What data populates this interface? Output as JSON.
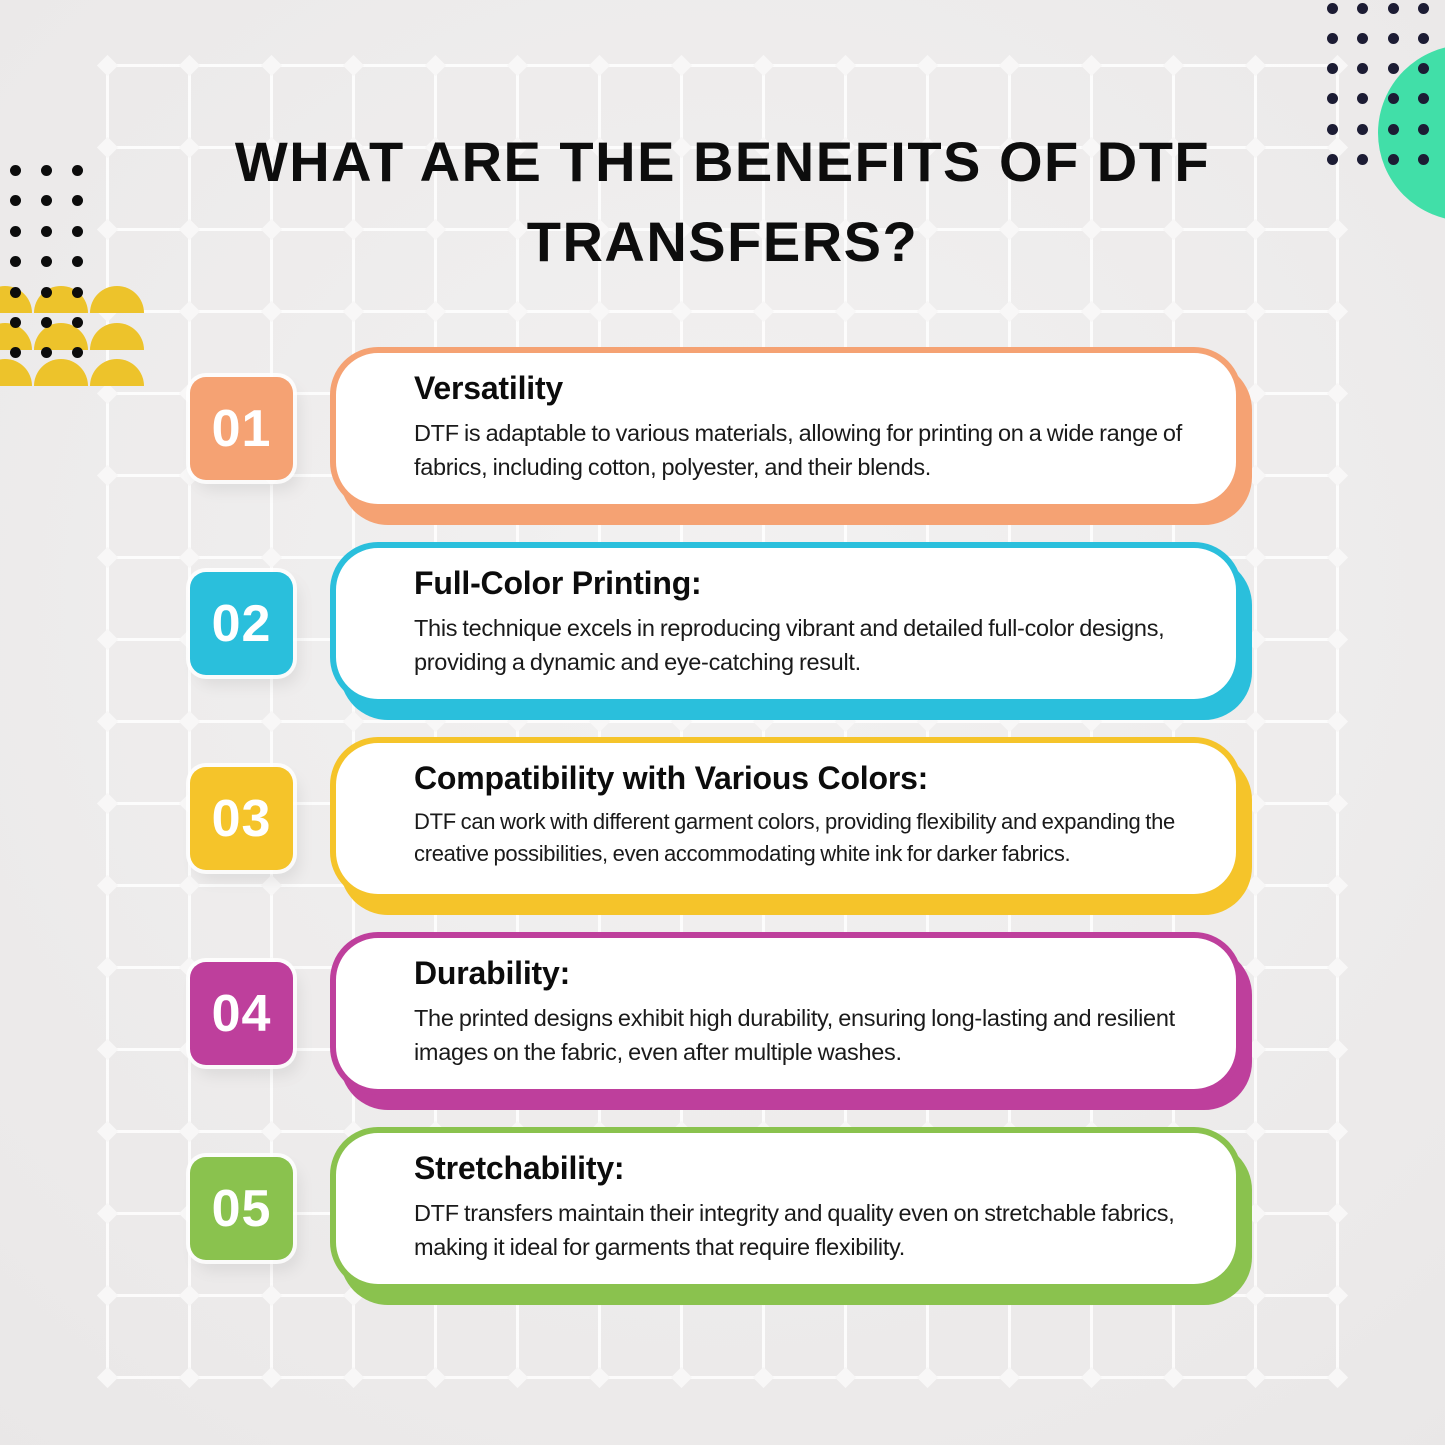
{
  "title": {
    "line1": "WHAT ARE THE BENEFITS OF DTF",
    "line2": "TRANSFERS?"
  },
  "items": [
    {
      "number": "01",
      "heading": "Versatility",
      "body": "DTF is adaptable to various materials, allowing for printing on a wide range of fabrics, including cotton, polyester, and their blends.",
      "color": "#F5A273"
    },
    {
      "number": "02",
      "heading": "Full-Color Printing:",
      "body": "This technique excels in reproducing vibrant and detailed full-color designs, providing a dynamic and eye-catching result.",
      "color": "#2ABFDC"
    },
    {
      "number": "03",
      "heading": "Compatibility with Various Colors:",
      "body": "DTF can work with different garment colors, providing flexibility and expanding the creative possibilities, even accommodating white ink for darker fabrics.",
      "color": "#F5C42A"
    },
    {
      "number": "04",
      "heading": "Durability:",
      "body": "The printed designs exhibit high durability, ensuring long-lasting and resilient images on the fabric, even after multiple washes.",
      "color": "#BE3F9C"
    },
    {
      "number": "05",
      "heading": "Stretchability:",
      "body": "DTF transfers maintain their integrity and quality even on stretchable fabrics, making it ideal for garments that require flexibility.",
      "color": "#8AC24E"
    }
  ],
  "decor": {
    "teal_circle_color": "#41DFA8",
    "yellow_arcs_color": "#EDC32B",
    "left_dots_color": "#0C0C0C",
    "right_dots_color": "#1C1C34"
  }
}
